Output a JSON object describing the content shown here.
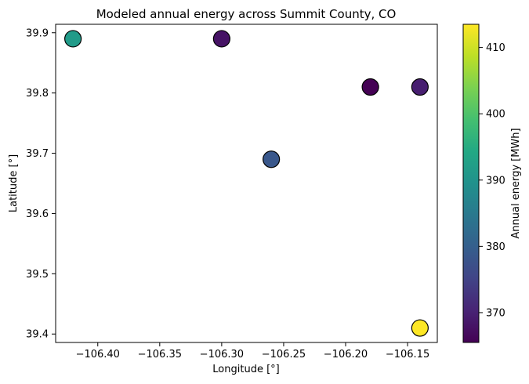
{
  "chart_data": {
    "type": "scatter",
    "title": "Modeled annual energy across Summit County, CO",
    "xlabel": "Longitude [°]",
    "ylabel": "Latitude [°]",
    "xlim": [
      -106.434,
      -106.126
    ],
    "ylim": [
      39.386,
      39.914
    ],
    "xticks": [
      -106.4,
      -106.35,
      -106.3,
      -106.25,
      -106.2,
      -106.15
    ],
    "xtick_labels": [
      "−106.40",
      "−106.35",
      "−106.30",
      "−106.25",
      "−106.20",
      "−106.15"
    ],
    "yticks": [
      39.4,
      39.5,
      39.6,
      39.7,
      39.8,
      39.9
    ],
    "ytick_labels": [
      "39.4",
      "39.5",
      "39.6",
      "39.7",
      "39.8",
      "39.9"
    ],
    "points": [
      {
        "x": -106.42,
        "y": 39.89,
        "value": 391.5
      },
      {
        "x": -106.3,
        "y": 39.89,
        "value": 368.0
      },
      {
        "x": -106.18,
        "y": 39.81,
        "value": 365.5
      },
      {
        "x": -106.14,
        "y": 39.81,
        "value": 369.5
      },
      {
        "x": -106.26,
        "y": 39.69,
        "value": 378.5
      },
      {
        "x": -106.14,
        "y": 39.41,
        "value": 413.5
      }
    ],
    "colorbar": {
      "label": "Annual energy [MWh]",
      "colormap": "viridis",
      "range": [
        365.5,
        413.5
      ],
      "ticks": [
        370,
        380,
        390,
        400,
        410
      ],
      "tick_labels": [
        "370",
        "380",
        "390",
        "400",
        "410"
      ]
    },
    "grid": false,
    "legend": "none"
  }
}
